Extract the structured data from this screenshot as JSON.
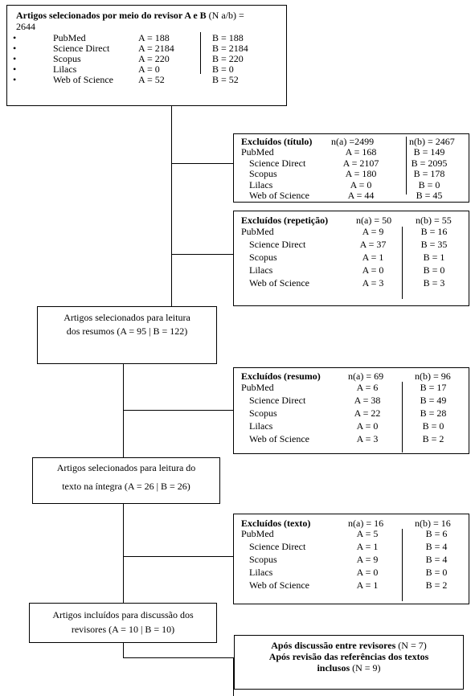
{
  "top": {
    "title_bold": "Artigos selecionados por meio do revisor A e B",
    "title_rest": " (N a/b) =",
    "total": "2644",
    "bullet": "•",
    "rows": [
      {
        "name": "PubMed",
        "a": "A = 188",
        "b": "B = 188"
      },
      {
        "name": "Science Direct",
        "a": "A = 2184",
        "b": "B = 2184"
      },
      {
        "name": "Scopus",
        "a": "A = 220",
        "b": "B = 220"
      },
      {
        "name": "Lilacs",
        "a": "A = 0",
        "b": "B = 0"
      },
      {
        "name": "Web of Science",
        "a": "A = 52",
        "b": "B = 52"
      }
    ]
  },
  "exc_titulo": {
    "title": "Excluídos (título)",
    "na": "n(a) =2499",
    "nb": "n(b) = 2467",
    "rows": [
      {
        "name": "PubMed",
        "a": "A = 168",
        "b": "B = 149"
      },
      {
        "name": "Science Direct",
        "a": "A = 2107",
        "b": "B = 2095"
      },
      {
        "name": "Scopus",
        "a": "A = 180",
        "b": "B = 178"
      },
      {
        "name": "Lilacs",
        "a": "A = 0",
        "b": "B = 0"
      },
      {
        "name": "Web of Science",
        "a": "A = 44",
        "b": "B = 45"
      }
    ]
  },
  "exc_repeticao": {
    "title": "Excluídos (repetição)",
    "na": "n(a) = 50",
    "nb": "n(b) = 55",
    "rows": [
      {
        "name": "PubMed",
        "a": "A = 9",
        "b": "B = 16"
      },
      {
        "name": "Science Direct",
        "a": "A = 37",
        "b": "B = 35"
      },
      {
        "name": "Scopus",
        "a": "A = 1",
        "b": "B = 1"
      },
      {
        "name": "Lilacs",
        "a": "A = 0",
        "b": "B = 0"
      },
      {
        "name": "Web of Science",
        "a": "A = 3",
        "b": "B = 3"
      }
    ]
  },
  "sel_resumos": {
    "line1": "Artigos selecionados para leitura",
    "line2": "dos resumos (A = 95 | B = 122)"
  },
  "exc_resumo": {
    "title": "Excluídos (resumo)",
    "na": "n(a) = 69",
    "nb": "n(b) = 96",
    "rows": [
      {
        "name": "PubMed",
        "a": "A = 6",
        "b": "B = 17"
      },
      {
        "name": "Science Direct",
        "a": "A = 38",
        "b": "B = 49"
      },
      {
        "name": "Scopus",
        "a": "A = 22",
        "b": "B = 28"
      },
      {
        "name": "Lilacs",
        "a": "A = 0",
        "b": "B = 0"
      },
      {
        "name": "Web of Science",
        "a": "A = 3",
        "b": "B = 2"
      }
    ]
  },
  "sel_texto": {
    "line1": "Artigos selecionados para leitura do",
    "line2": "texto na íntegra (A = 26 | B = 26)"
  },
  "exc_texto": {
    "title": "Excluídos (texto)",
    "na": "n(a) = 16",
    "nb": "n(b) = 16",
    "rows": [
      {
        "name": "PubMed",
        "a": "A = 5",
        "b": "B = 6"
      },
      {
        "name": "Science Direct",
        "a": "A = 1",
        "b": "B = 4"
      },
      {
        "name": "Scopus",
        "a": "A = 9",
        "b": "B = 4"
      },
      {
        "name": "Lilacs",
        "a": "A = 0",
        "b": "B = 0"
      },
      {
        "name": "Web of Science",
        "a": "A = 1",
        "b": "B = 2"
      }
    ]
  },
  "incluidos": {
    "line1": "Artigos incluídos para discussão dos",
    "line2": "revisores (A = 10 | B = 10)"
  },
  "final": {
    "line1_bold": "Após discussão entre revisores",
    "line1_rest": " (N = 7)",
    "line2_bold": "Após revisão das referências dos textos",
    "line3_bold": "inclusos",
    "line3_rest": " (N = 9)"
  }
}
